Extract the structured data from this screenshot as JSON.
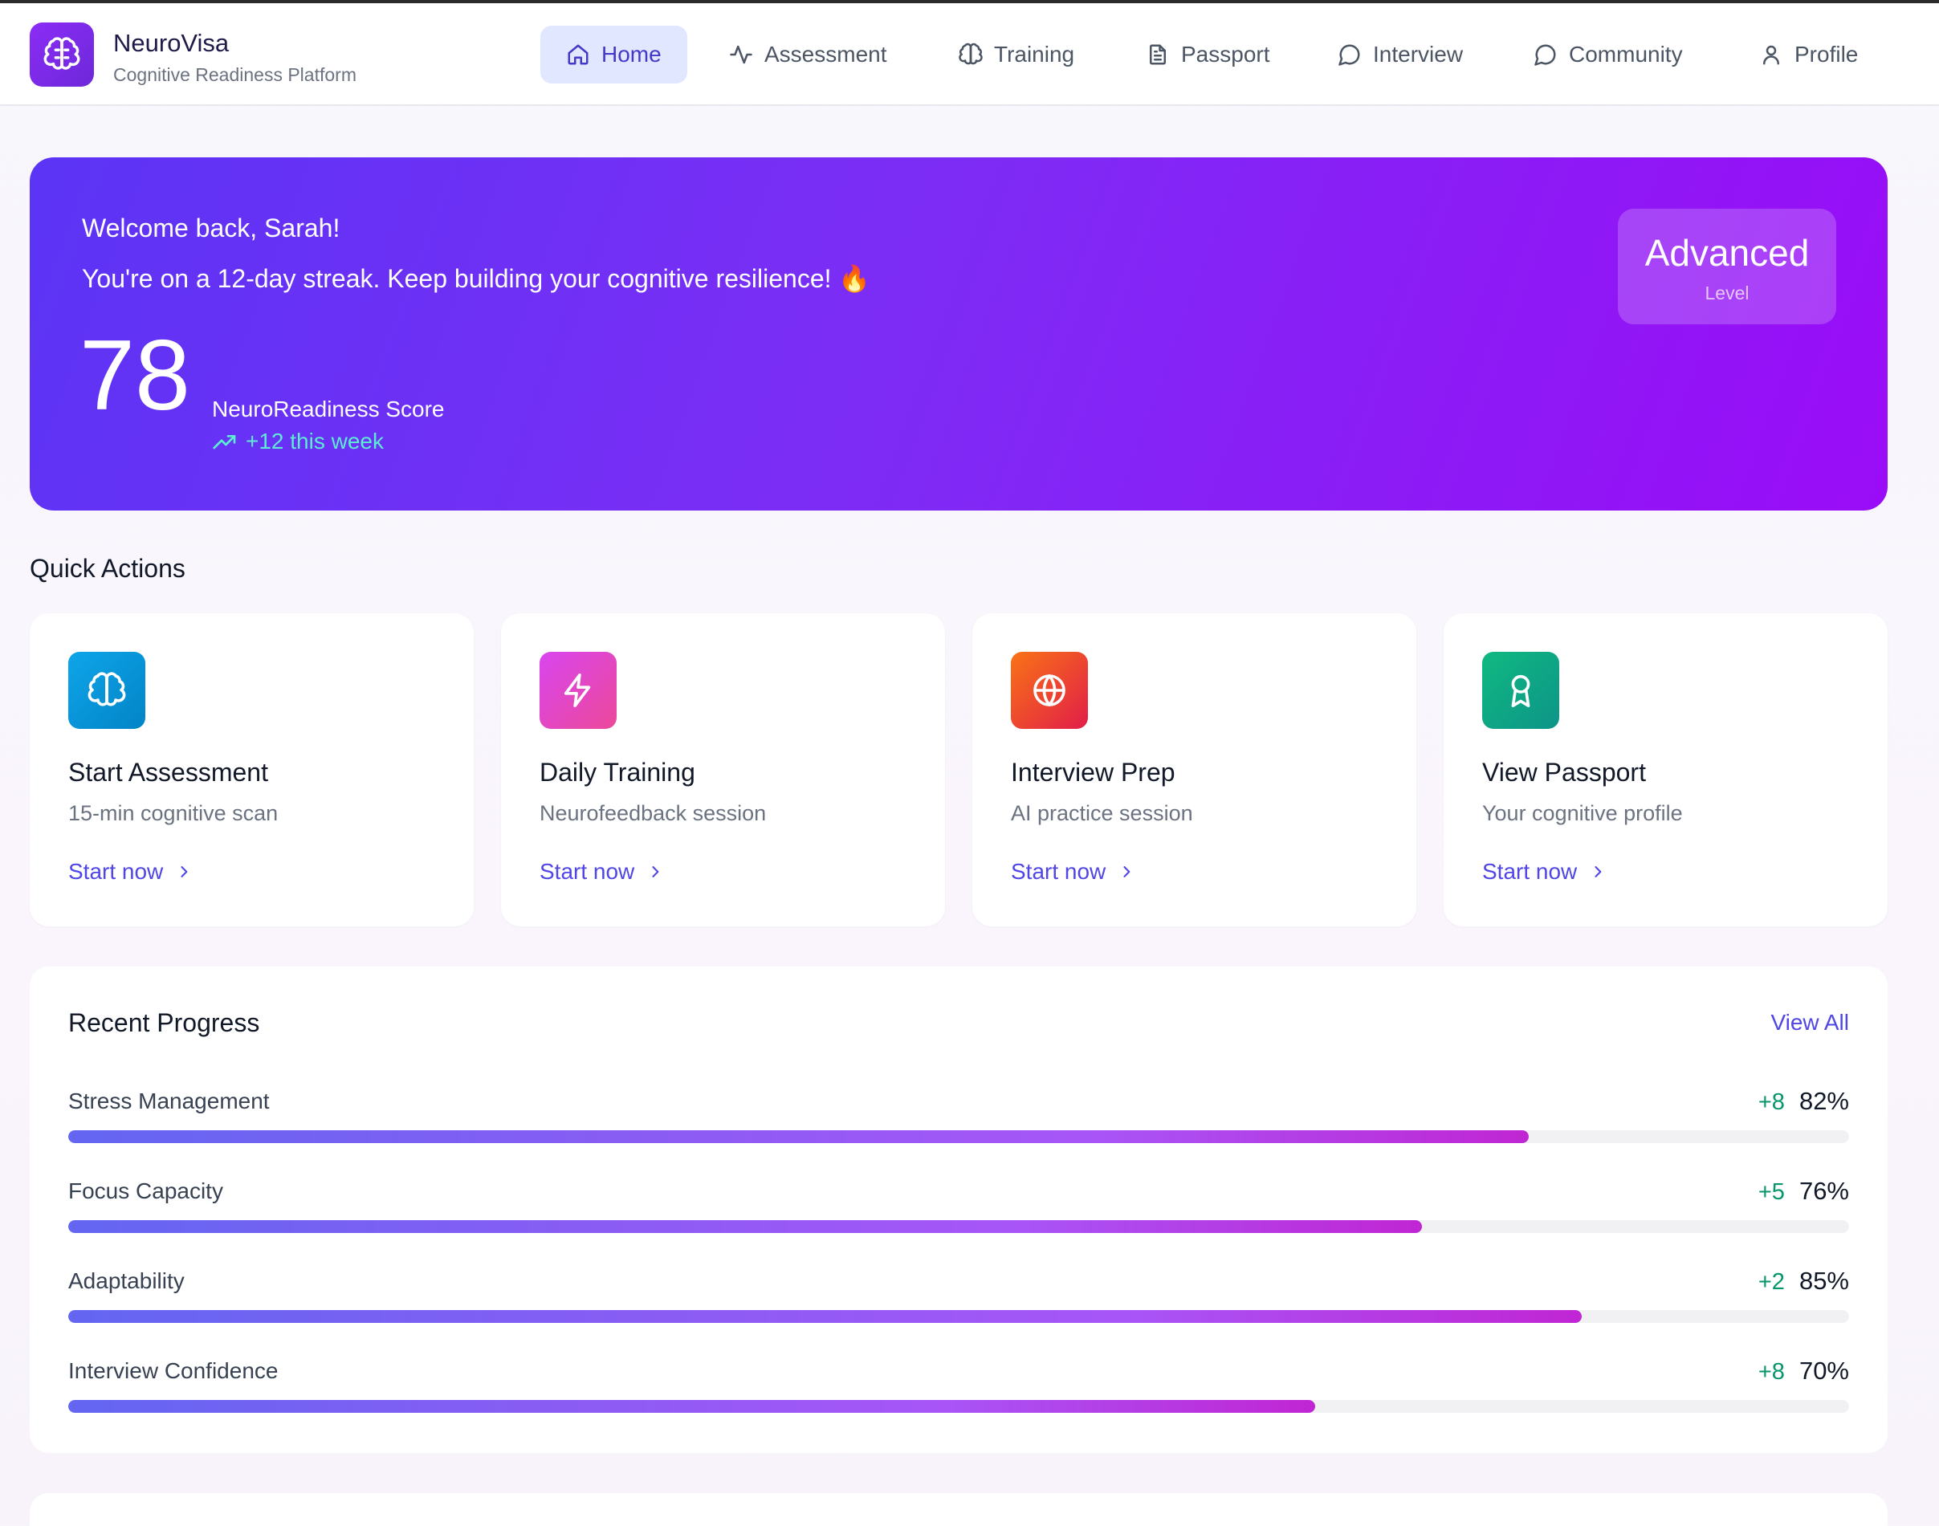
{
  "brand": {
    "name": "NeuroVisa",
    "subtitle": "Cognitive Readiness Platform",
    "logo_icon": "brain-icon"
  },
  "nav": [
    {
      "label": "Home",
      "icon": "home-icon",
      "active": true
    },
    {
      "label": "Assessment",
      "icon": "activity-icon",
      "active": false
    },
    {
      "label": "Training",
      "icon": "brain-icon",
      "active": false
    },
    {
      "label": "Passport",
      "icon": "document-icon",
      "active": false
    },
    {
      "label": "Interview",
      "icon": "chat-bubble-icon",
      "active": false
    },
    {
      "label": "Community",
      "icon": "chat-bubble-icon",
      "active": false
    },
    {
      "label": "Profile",
      "icon": "user-icon",
      "active": false
    }
  ],
  "hero": {
    "welcome": "Welcome back, Sarah!",
    "streak": "You're on a 12-day streak. Keep building your cognitive resilience! 🔥",
    "score": "78",
    "score_label": "NeuroReadiness Score",
    "trend": "+12 this week",
    "level_value": "Advanced",
    "level_label": "Level"
  },
  "quick_actions": {
    "title": "Quick Actions",
    "cards": [
      {
        "title": "Start Assessment",
        "subtitle": "15-min cognitive scan",
        "link": "Start now",
        "icon": "brain-icon",
        "color_from": "#0ea5e9",
        "color_to": "#0284c7"
      },
      {
        "title": "Daily Training",
        "subtitle": "Neurofeedback session",
        "link": "Start now",
        "icon": "lightning-icon",
        "color_from": "#d946ef",
        "color_to": "#ec4899"
      },
      {
        "title": "Interview Prep",
        "subtitle": "AI practice session",
        "link": "Start now",
        "icon": "globe-icon",
        "color_from": "#f97316",
        "color_to": "#e11d48"
      },
      {
        "title": "View Passport",
        "subtitle": "Your cognitive profile",
        "link": "Start now",
        "icon": "award-icon",
        "color_from": "#10b981",
        "color_to": "#0d9488"
      }
    ]
  },
  "progress": {
    "title": "Recent Progress",
    "view_all": "View All",
    "metrics": [
      {
        "name": "Stress Management",
        "delta": "+8",
        "value": "82%",
        "fraction": 0.82
      },
      {
        "name": "Focus Capacity",
        "delta": "+5",
        "value": "76%",
        "fraction": 0.76
      },
      {
        "name": "Adaptability",
        "delta": "+2",
        "value": "85%",
        "fraction": 0.85
      },
      {
        "name": "Interview Confidence",
        "delta": "+8",
        "value": "70%",
        "fraction": 0.7
      }
    ]
  }
}
